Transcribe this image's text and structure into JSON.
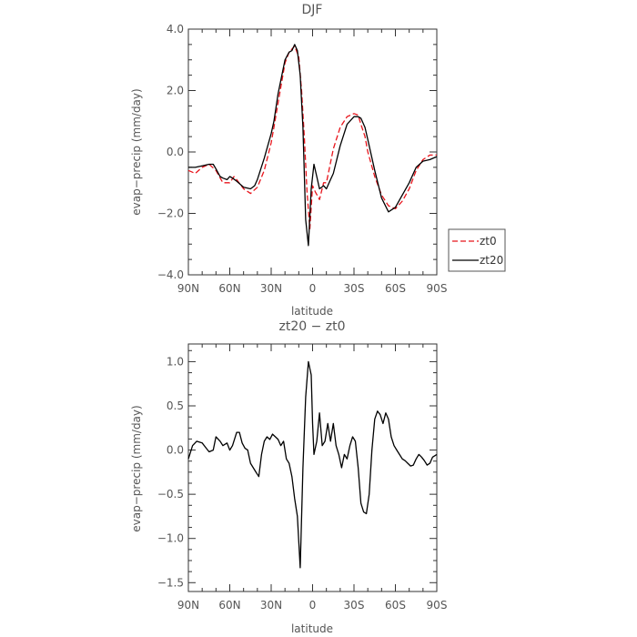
{
  "chart_data": [
    {
      "type": "line",
      "title": "DJF",
      "xlabel": "latitude",
      "ylabel": "evap−precip (mm/day)",
      "x_ticks": [
        {
          "value": -90,
          "label": "90N"
        },
        {
          "value": -60,
          "label": "60N"
        },
        {
          "value": -30,
          "label": "30N"
        },
        {
          "value": 0,
          "label": "0"
        },
        {
          "value": 30,
          "label": "30S"
        },
        {
          "value": 60,
          "label": "60S"
        },
        {
          "value": 90,
          "label": "90S"
        }
      ],
      "xlim": [
        -90,
        90
      ],
      "y_ticks": [
        {
          "value": -4,
          "label": "−4.0"
        },
        {
          "value": -2,
          "label": "−2.0"
        },
        {
          "value": 0,
          "label": "0.0"
        },
        {
          "value": 2,
          "label": "2.0"
        },
        {
          "value": 4,
          "label": "4.0"
        }
      ],
      "ylim": [
        -4,
        4
      ],
      "legend": "right",
      "series": [
        {
          "name": "zt0",
          "color": "#e8141b",
          "dash": "6,3",
          "x": [
            -90,
            -85,
            -80,
            -75,
            -70,
            -65,
            -60,
            -57,
            -55,
            -50,
            -45,
            -40,
            -35,
            -30,
            -28,
            -25,
            -20,
            -17,
            -15,
            -13,
            -10,
            -8,
            -6,
            -4,
            -2,
            0,
            2,
            5,
            8,
            10,
            15,
            20,
            25,
            30,
            33,
            35,
            38,
            40,
            45,
            50,
            55,
            60,
            65,
            70,
            75,
            80,
            85,
            90
          ],
          "y": [
            -0.6,
            -0.7,
            -0.5,
            -0.4,
            -0.6,
            -1.0,
            -1.0,
            -0.8,
            -0.9,
            -1.2,
            -1.35,
            -1.15,
            -0.6,
            0.3,
            0.8,
            1.6,
            2.9,
            3.25,
            3.35,
            3.45,
            3.1,
            2.0,
            0.5,
            -1.3,
            -2.5,
            -1.1,
            -1.3,
            -1.55,
            -1.0,
            -1.0,
            0.1,
            0.8,
            1.15,
            1.25,
            1.2,
            0.9,
            0.5,
            0.0,
            -0.8,
            -1.4,
            -1.75,
            -1.85,
            -1.6,
            -1.2,
            -0.6,
            -0.25,
            -0.1,
            -0.1
          ]
        },
        {
          "name": "zt20",
          "color": "#000000",
          "dash": "",
          "x": [
            -90,
            -85,
            -80,
            -75,
            -72,
            -70,
            -67,
            -65,
            -62,
            -60,
            -58,
            -55,
            -50,
            -45,
            -42,
            -40,
            -35,
            -30,
            -28,
            -25,
            -20,
            -17,
            -15,
            -13,
            -11,
            -9,
            -7,
            -5,
            -3,
            -1,
            1,
            3,
            5,
            8,
            10,
            13,
            15,
            20,
            25,
            30,
            33,
            35,
            38,
            40,
            45,
            50,
            55,
            60,
            65,
            70,
            75,
            80,
            85,
            90
          ],
          "y": [
            -0.5,
            -0.5,
            -0.45,
            -0.4,
            -0.4,
            -0.55,
            -0.8,
            -0.85,
            -0.9,
            -0.8,
            -0.85,
            -0.95,
            -1.15,
            -1.2,
            -1.1,
            -0.9,
            -0.2,
            0.6,
            1.0,
            1.9,
            3.0,
            3.25,
            3.3,
            3.5,
            3.3,
            2.5,
            0.8,
            -2.2,
            -3.05,
            -1.2,
            -0.4,
            -0.8,
            -1.2,
            -1.1,
            -1.2,
            -0.9,
            -0.7,
            0.2,
            0.9,
            1.15,
            1.15,
            1.1,
            0.8,
            0.4,
            -0.6,
            -1.5,
            -1.95,
            -1.8,
            -1.4,
            -1.0,
            -0.5,
            -0.3,
            -0.25,
            -0.15
          ]
        }
      ]
    },
    {
      "type": "line",
      "title": "zt20 − zt0",
      "xlabel": "latitude",
      "ylabel": "evap−precip (mm/day)",
      "x_ticks": [
        {
          "value": -90,
          "label": "90N"
        },
        {
          "value": -60,
          "label": "60N"
        },
        {
          "value": -30,
          "label": "30N"
        },
        {
          "value": 0,
          "label": "0"
        },
        {
          "value": 30,
          "label": "30S"
        },
        {
          "value": 60,
          "label": "60S"
        },
        {
          "value": 90,
          "label": "90S"
        }
      ],
      "xlim": [
        -90,
        90
      ],
      "y_ticks": [
        {
          "value": -1.5,
          "label": "−1.5"
        },
        {
          "value": -1.0,
          "label": "−1.0"
        },
        {
          "value": -0.5,
          "label": "−0.5"
        },
        {
          "value": 0.0,
          "label": "0.0"
        },
        {
          "value": 0.5,
          "label": "0.5"
        },
        {
          "value": 1.0,
          "label": "1.0"
        }
      ],
      "ylim": [
        -1.6,
        1.2
      ],
      "series": [
        {
          "name": "",
          "color": "#000000",
          "dash": "",
          "x": [
            -90,
            -87,
            -84,
            -80,
            -77,
            -75,
            -72,
            -70,
            -67,
            -65,
            -62,
            -60,
            -58,
            -55,
            -53,
            -51,
            -49,
            -47,
            -45,
            -43,
            -41,
            -39,
            -37,
            -35,
            -33,
            -31,
            -29,
            -27,
            -25,
            -23,
            -21,
            -19,
            -17,
            -15,
            -13,
            -11,
            -9,
            -7,
            -5,
            -3,
            -1,
            0,
            1,
            3,
            5,
            7,
            9,
            11,
            13,
            15,
            17,
            19,
            21,
            23,
            25,
            27,
            29,
            31,
            33,
            35,
            37,
            39,
            41,
            43,
            45,
            47,
            49,
            51,
            53,
            55,
            57,
            59,
            61,
            63,
            65,
            67,
            69,
            71,
            73,
            75,
            77,
            79,
            81,
            83,
            85,
            87,
            90
          ],
          "y": [
            -0.1,
            0.05,
            0.1,
            0.08,
            0.02,
            -0.02,
            0.0,
            0.15,
            0.1,
            0.05,
            0.08,
            0.0,
            0.05,
            0.2,
            0.2,
            0.08,
            0.02,
            0.0,
            -0.15,
            -0.2,
            -0.25,
            -0.3,
            -0.05,
            0.1,
            0.15,
            0.12,
            0.18,
            0.15,
            0.12,
            0.05,
            0.1,
            -0.1,
            -0.15,
            -0.3,
            -0.55,
            -0.75,
            -1.33,
            -0.2,
            0.6,
            1.0,
            0.85,
            0.3,
            -0.05,
            0.1,
            0.42,
            0.05,
            0.1,
            0.3,
            0.1,
            0.3,
            0.05,
            -0.05,
            -0.2,
            -0.05,
            -0.1,
            0.05,
            0.15,
            0.1,
            -0.2,
            -0.6,
            -0.7,
            -0.72,
            -0.5,
            0.0,
            0.35,
            0.44,
            0.4,
            0.3,
            0.42,
            0.35,
            0.15,
            0.05,
            0.0,
            -0.05,
            -0.1,
            -0.12,
            -0.15,
            -0.18,
            -0.17,
            -0.1,
            -0.05,
            -0.08,
            -0.12,
            -0.17,
            -0.15,
            -0.08,
            -0.05
          ]
        }
      ]
    }
  ]
}
